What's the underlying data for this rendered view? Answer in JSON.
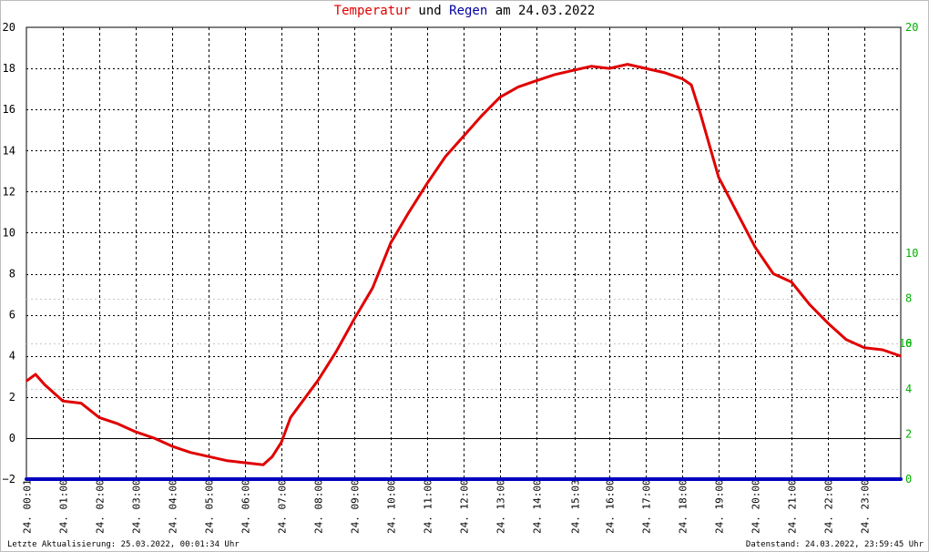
{
  "title": {
    "part1": "Temperatur",
    "part2": "und",
    "part3": "Regen",
    "part4": "am 24.03.2022"
  },
  "colors": {
    "temperature": "#e00000",
    "rain": "#0000c0",
    "right_axis": "#00b000",
    "grid": "#000000"
  },
  "footer": {
    "left": "Letzte Aktualisierung: 25.03.2022, 00:01:34 Uhr",
    "right": "Datenstand: 24.03.2022, 23:59:45 Uhr"
  },
  "chart_data": {
    "type": "line",
    "title": "Temperatur und Regen am 24.03.2022",
    "xlabel": "",
    "ylabel": "",
    "grid": true,
    "x_ticks": [
      "24. 00:01",
      "24. 01:00",
      "24. 02:00",
      "24. 03:00",
      "24. 04:00",
      "24. 05:00",
      "24. 06:00",
      "24. 07:00",
      "24. 08:00",
      "24. 09:00",
      "24. 10:00",
      "24. 11:00",
      "24. 12:00",
      "24. 13:00",
      "24. 14:00",
      "24. 15:03",
      "24. 16:00",
      "24. 17:00",
      "24. 18:00",
      "24. 19:00",
      "24. 20:00",
      "24. 21:00",
      "24. 22:00",
      "24. 23:00"
    ],
    "y_left": {
      "ylim": [
        -2,
        20
      ],
      "ticks": [
        "−2",
        "0",
        "2",
        "4",
        "6",
        "8",
        "10",
        "12",
        "14",
        "16",
        "18",
        "20"
      ]
    },
    "y_right": {
      "ylim": [
        0,
        20
      ],
      "ticks": [
        "0",
        "2",
        "4",
        "6",
        "8",
        "10",
        "20"
      ]
    },
    "series": [
      {
        "name": "Temperatur",
        "axis": "left",
        "x": [
          "00:01",
          "00:15",
          "00:30",
          "00:45",
          "01:00",
          "01:30",
          "02:00",
          "02:30",
          "03:00",
          "03:30",
          "04:00",
          "04:30",
          "05:00",
          "05:30",
          "06:00",
          "06:30",
          "06:45",
          "07:00",
          "07:15",
          "07:30",
          "08:00",
          "08:30",
          "09:00",
          "09:30",
          "10:00",
          "10:30",
          "11:00",
          "11:30",
          "12:00",
          "12:30",
          "13:00",
          "13:30",
          "14:00",
          "14:30",
          "15:00",
          "15:30",
          "16:00",
          "16:30",
          "17:00",
          "17:30",
          "18:00",
          "18:15",
          "18:30",
          "19:00",
          "19:30",
          "20:00",
          "20:30",
          "21:00",
          "21:30",
          "22:00",
          "22:30",
          "23:00",
          "23:30",
          "23:59"
        ],
        "values": [
          2.8,
          3.1,
          2.6,
          2.2,
          1.8,
          1.7,
          1.0,
          0.7,
          0.3,
          0.0,
          -0.4,
          -0.7,
          -0.9,
          -1.1,
          -1.2,
          -1.3,
          -0.9,
          -0.2,
          1.0,
          1.6,
          2.8,
          4.2,
          5.8,
          7.3,
          9.5,
          11.0,
          12.4,
          13.7,
          14.7,
          15.7,
          16.6,
          17.1,
          17.4,
          17.7,
          17.9,
          18.1,
          18.0,
          18.2,
          18.0,
          17.8,
          17.5,
          17.2,
          15.8,
          12.7,
          11.0,
          9.3,
          8.0,
          7.6,
          6.5,
          5.6,
          4.8,
          4.4,
          4.3,
          4.0
        ]
      },
      {
        "name": "Regen",
        "axis": "right",
        "x": [
          "00:01",
          "23:59"
        ],
        "values": [
          0,
          0
        ]
      }
    ]
  }
}
